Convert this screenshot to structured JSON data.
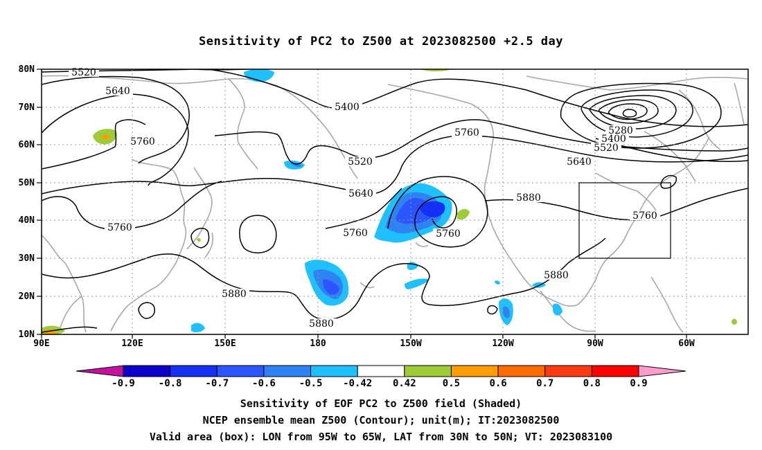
{
  "title": "Sensitivity of PC2 to Z500 at 2023082500 +2.5 day",
  "lat_labels": [
    "80N",
    "70N",
    "60N",
    "50N",
    "40N",
    "30N",
    "20N",
    "10N"
  ],
  "lon_labels": [
    "90E",
    "120E",
    "150E",
    "180",
    "150W",
    "120W",
    "90W",
    "60W"
  ],
  "contour_labels": [
    "5520",
    "5640",
    "5760",
    "5400",
    "5520",
    "5280",
    "5400",
    "5520",
    "5640",
    "5760",
    "5640",
    "5880",
    "5760",
    "5760",
    "5760",
    "5760",
    "5880",
    "5880",
    "5880"
  ],
  "colorbar": {
    "ticks": [
      "-0.9",
      "-0.8",
      "-0.7",
      "-0.6",
      "-0.5",
      "-0.42",
      "0.42",
      "0.5",
      "0.6",
      "0.7",
      "0.8",
      "0.9"
    ],
    "colors": [
      "#c3139b",
      "#0d00c8",
      "#1530f5",
      "#2a55ff",
      "#2f82f2",
      "#1fc0ff",
      "#ffffff",
      "#9ecb3a",
      "#ff9c00",
      "#ff6a00",
      "#ff3a10",
      "#ff0000",
      "#ff9ccc"
    ]
  },
  "box": {
    "label": "Valid area",
    "lon": "95W to 65W",
    "lat": "30N to 50N"
  },
  "footer": [
    "Sensitivity of EOF PC2 to Z500 field (Shaded)",
    "NCEP ensemble mean Z500 (Contour); unit(m); IT:2023082500",
    "Valid area (box): LON from 95W to 65W, LAT from 30N to 50N; VT: 2023083100"
  ]
}
